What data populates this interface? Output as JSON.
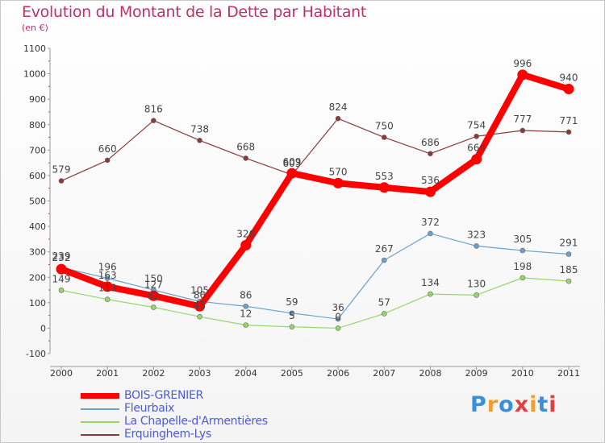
{
  "chart_data": {
    "type": "line",
    "title": "Evolution du Montant de la Dette par Habitant",
    "subtitle": "(en €)",
    "xlabel": "",
    "ylabel": "",
    "x": [
      "2000",
      "2001",
      "2002",
      "2003",
      "2004",
      "2005",
      "2006",
      "2007",
      "2008",
      "2009",
      "2010",
      "2011"
    ],
    "ylim": [
      -100,
      1100
    ],
    "yticks": [
      -100,
      0,
      100,
      200,
      300,
      400,
      500,
      600,
      700,
      800,
      900,
      1000,
      1100
    ],
    "ytick_labels": [
      "-100",
      "0",
      "100",
      "200",
      "300",
      "400",
      "500",
      "600",
      "700",
      "800",
      "900",
      "1000",
      "1100"
    ],
    "grid": false,
    "legend_position": "bottom-left",
    "series": [
      {
        "name": "BOIS-GRENIER",
        "color": "#ff0000",
        "values": [
          232,
          163,
          127,
          86,
          326,
          609,
          570,
          553,
          536,
          664,
          996,
          940
        ],
        "labels": [
          "232",
          "163",
          "127",
          "86",
          "326",
          "609",
          "570",
          "553",
          "536",
          "664",
          "996",
          "940"
        ]
      },
      {
        "name": "Fleurbaix",
        "color": "#6aa2cf",
        "values": [
          239,
          196,
          150,
          105,
          86,
          59,
          36,
          267,
          372,
          323,
          305,
          291
        ],
        "labels": [
          "239",
          "196",
          "150",
          "105",
          "86",
          "59",
          "36",
          "267",
          "372",
          "323",
          "305",
          "291"
        ]
      },
      {
        "name": "La Chapelle-d'Armentières",
        "color": "#94d869",
        "values": [
          149,
          113,
          82,
          45,
          12,
          5,
          0,
          57,
          134,
          130,
          198,
          185
        ],
        "labels": [
          "149",
          "113",
          "82",
          "45",
          "12",
          "5",
          "0",
          "57",
          "134",
          "130",
          "198",
          "185"
        ]
      },
      {
        "name": "Erquinghem-Lys",
        "color": "#8b3a3a",
        "values": [
          579,
          660,
          816,
          738,
          668,
          603,
          824,
          750,
          686,
          754,
          777,
          771
        ],
        "labels": [
          "579",
          "660",
          "816",
          "738",
          "668",
          "603",
          "824",
          "750",
          "686",
          "754",
          "777",
          "771"
        ]
      }
    ]
  },
  "brand": {
    "text": "Proxiti",
    "colors": [
      "#3a8fd8",
      "#f0a030",
      "#3a8fd8",
      "#e04040",
      "#f0a030",
      "#3a8fd8",
      "#e04040"
    ]
  }
}
